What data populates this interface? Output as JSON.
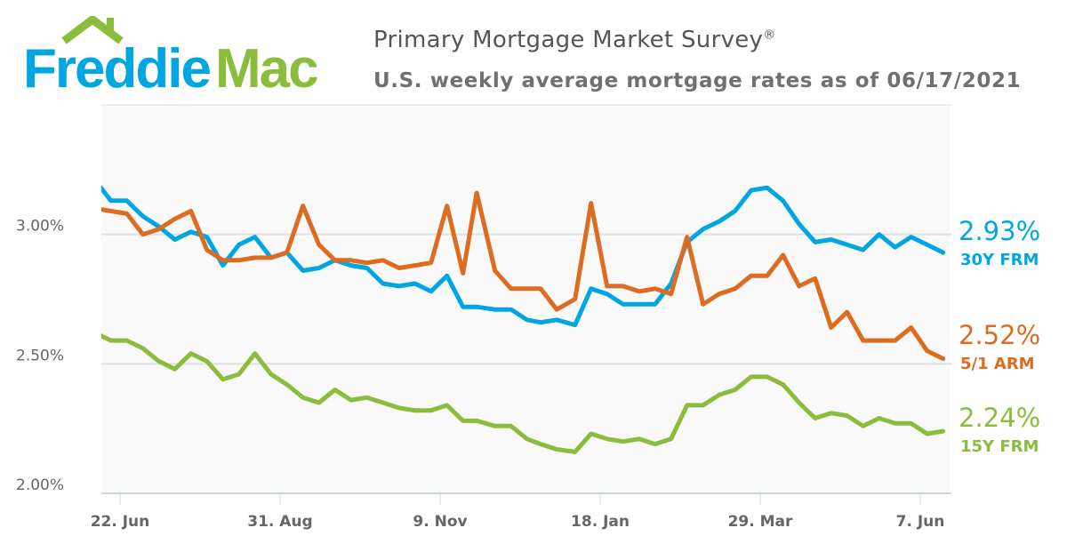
{
  "header": {
    "logo_text": "Freddie Mac",
    "logo_part1": "Freddie",
    "logo_part2": "Mac",
    "title": "Primary Mortgage Market Survey",
    "title_mark": "®",
    "subtitle": "U.S. weekly average mortgage rates as of 06/17/2021"
  },
  "colors": {
    "brand_blue": "#00a6e2",
    "brand_green": "#8abd3c",
    "arm_orange": "#dd6b20"
  },
  "chart_data": {
    "type": "line",
    "title": "Primary Mortgage Market Survey",
    "subtitle": "U.S. weekly average mortgage rates as of 06/17/2021",
    "ylim": [
      2.0,
      3.5
    ],
    "y_ticks": [
      {
        "value": 2.0,
        "label": "2.00%"
      },
      {
        "value": 2.5,
        "label": "2.50%"
      },
      {
        "value": 3.0,
        "label": "3.00%"
      }
    ],
    "x_ticks": [
      {
        "date": "2020-06-22",
        "label": "22. Jun"
      },
      {
        "date": "2020-08-31",
        "label": "31. Aug"
      },
      {
        "date": "2020-11-09",
        "label": "9. Nov"
      },
      {
        "date": "2021-01-18",
        "label": "18. Jan"
      },
      {
        "date": "2021-03-29",
        "label": "29. Mar"
      },
      {
        "date": "2021-06-07",
        "label": "7. Jun"
      }
    ],
    "grid": true,
    "legend": "right (end labels)",
    "x": [
      "2020-06-11",
      "2020-06-18",
      "2020-06-25",
      "2020-07-02",
      "2020-07-09",
      "2020-07-16",
      "2020-07-23",
      "2020-07-30",
      "2020-08-06",
      "2020-08-13",
      "2020-08-20",
      "2020-08-27",
      "2020-09-03",
      "2020-09-10",
      "2020-09-17",
      "2020-09-24",
      "2020-10-01",
      "2020-10-08",
      "2020-10-15",
      "2020-10-22",
      "2020-10-29",
      "2020-11-05",
      "2020-11-12",
      "2020-11-19",
      "2020-11-25",
      "2020-12-03",
      "2020-12-10",
      "2020-12-17",
      "2020-12-23",
      "2020-12-30",
      "2021-01-07",
      "2021-01-14",
      "2021-01-21",
      "2021-01-28",
      "2021-02-04",
      "2021-02-11",
      "2021-02-18",
      "2021-02-25",
      "2021-03-04",
      "2021-03-11",
      "2021-03-18",
      "2021-03-25",
      "2021-04-01",
      "2021-04-08",
      "2021-04-15",
      "2021-04-22",
      "2021-04-29",
      "2021-05-06",
      "2021-05-13",
      "2021-05-20",
      "2021-05-27",
      "2021-06-03",
      "2021-06-10",
      "2021-06-17"
    ],
    "series": [
      {
        "name": "30Y FRM",
        "color": "#00a6e2",
        "end_label": "2.93%",
        "values": [
          3.21,
          3.13,
          3.13,
          3.07,
          3.03,
          2.98,
          3.01,
          2.99,
          2.88,
          2.96,
          2.99,
          2.91,
          2.93,
          2.86,
          2.87,
          2.9,
          2.88,
          2.87,
          2.81,
          2.8,
          2.81,
          2.78,
          2.84,
          2.72,
          2.72,
          2.71,
          2.71,
          2.67,
          2.66,
          2.67,
          2.65,
          2.79,
          2.77,
          2.73,
          2.73,
          2.73,
          2.81,
          2.97,
          3.02,
          3.05,
          3.09,
          3.17,
          3.18,
          3.13,
          3.04,
          2.97,
          2.98,
          2.96,
          2.94,
          3.0,
          2.95,
          2.99,
          2.96,
          2.93
        ]
      },
      {
        "name": "5/1 ARM",
        "color": "#dd6b20",
        "end_label": "2.52%",
        "values": [
          3.1,
          3.09,
          3.08,
          3.0,
          3.02,
          3.06,
          3.09,
          2.94,
          2.9,
          2.9,
          2.91,
          2.91,
          2.93,
          3.11,
          2.96,
          2.9,
          2.9,
          2.89,
          2.9,
          2.87,
          2.88,
          2.89,
          3.11,
          2.85,
          3.16,
          2.86,
          2.79,
          2.79,
          2.79,
          2.71,
          2.75,
          3.12,
          2.8,
          2.8,
          2.78,
          2.79,
          2.77,
          2.99,
          2.73,
          2.77,
          2.79,
          2.84,
          2.84,
          2.92,
          2.8,
          2.83,
          2.64,
          2.7,
          2.59,
          2.59,
          2.59,
          2.64,
          2.55,
          2.52
        ]
      },
      {
        "name": "15Y FRM",
        "color": "#8abd3c",
        "end_label": "2.24%",
        "values": [
          2.62,
          2.59,
          2.59,
          2.56,
          2.51,
          2.48,
          2.54,
          2.51,
          2.44,
          2.46,
          2.54,
          2.46,
          2.42,
          2.37,
          2.35,
          2.4,
          2.36,
          2.37,
          2.35,
          2.33,
          2.32,
          2.32,
          2.34,
          2.28,
          2.28,
          2.26,
          2.26,
          2.21,
          2.19,
          2.17,
          2.16,
          2.23,
          2.21,
          2.2,
          2.21,
          2.19,
          2.21,
          2.34,
          2.34,
          2.38,
          2.4,
          2.45,
          2.45,
          2.42,
          2.35,
          2.29,
          2.31,
          2.3,
          2.26,
          2.29,
          2.27,
          2.27,
          2.23,
          2.24
        ]
      }
    ]
  }
}
